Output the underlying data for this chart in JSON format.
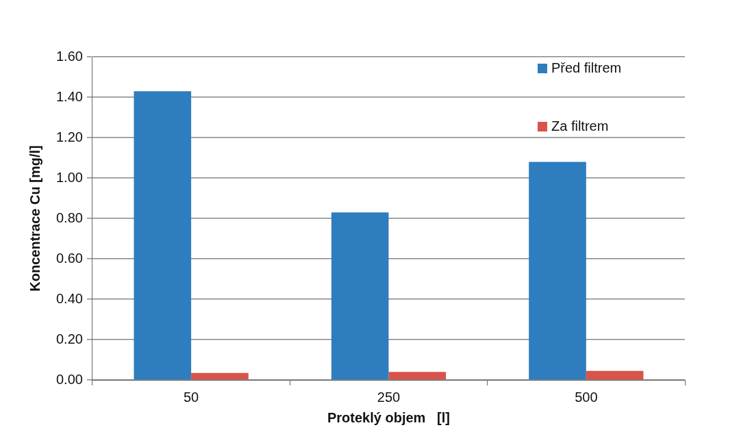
{
  "chart_data": {
    "type": "bar",
    "xlabel": "Proteklý objem   [l]",
    "ylabel": "Koncentrace Cu [mg/l]",
    "categories": [
      "50",
      "250",
      "500"
    ],
    "series": [
      {
        "name": "Před filtrem",
        "color": "#2e7dbf",
        "values": [
          1.43,
          0.83,
          1.08
        ]
      },
      {
        "name": "Za filtrem",
        "color": "#d9534a",
        "values": [
          0.035,
          0.04,
          0.045
        ]
      }
    ],
    "ylim": [
      0,
      1.6
    ],
    "yticks": [
      {
        "value": 0,
        "label": "0.00"
      },
      {
        "value": 0.2,
        "label": "0.20"
      },
      {
        "value": 0.4,
        "label": "0.40"
      },
      {
        "value": 0.6,
        "label": "0.60"
      },
      {
        "value": 0.8,
        "label": "0.80"
      },
      {
        "value": 1,
        "label": "1.00"
      },
      {
        "value": 1.2,
        "label": "1.20"
      },
      {
        "value": 1.4,
        "label": "1.40"
      },
      {
        "value": 1.6,
        "label": "1.60"
      }
    ],
    "grid": "y",
    "legend": "top right"
  }
}
